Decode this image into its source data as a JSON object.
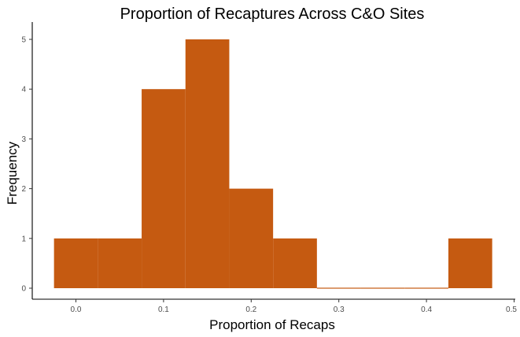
{
  "chart_data": {
    "type": "bar",
    "subtype": "histogram",
    "title": "Proportion of Recaptures Across C&O Sites",
    "xlabel": "Proportion of Recaps",
    "ylabel": "Frequency",
    "bin_width": 0.05,
    "bins": [
      {
        "start": -0.025,
        "end": 0.025,
        "count": 1
      },
      {
        "start": 0.025,
        "end": 0.075,
        "count": 1
      },
      {
        "start": 0.075,
        "end": 0.125,
        "count": 4
      },
      {
        "start": 0.125,
        "end": 0.175,
        "count": 5
      },
      {
        "start": 0.175,
        "end": 0.225,
        "count": 2
      },
      {
        "start": 0.225,
        "end": 0.275,
        "count": 1
      },
      {
        "start": 0.275,
        "end": 0.325,
        "count": 0
      },
      {
        "start": 0.325,
        "end": 0.375,
        "count": 0
      },
      {
        "start": 0.375,
        "end": 0.425,
        "count": 0
      },
      {
        "start": 0.425,
        "end": 0.475,
        "count": 1
      }
    ],
    "xlim": [
      -0.05,
      0.5
    ],
    "ylim": [
      0,
      5
    ],
    "x_ticks": [
      "0.0",
      "0.1",
      "0.2",
      "0.3",
      "0.4",
      "0.5"
    ],
    "y_ticks": [
      "0",
      "1",
      "2",
      "3",
      "4",
      "5"
    ],
    "grid": false,
    "bar_color": "#c55a11"
  }
}
